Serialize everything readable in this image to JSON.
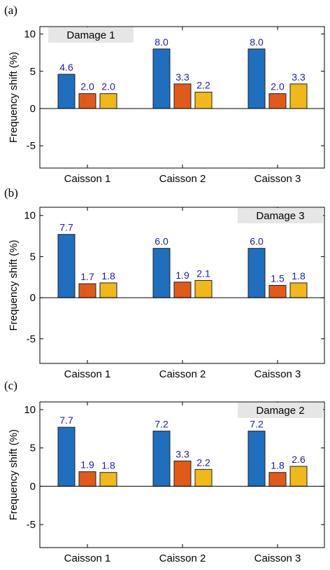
{
  "colors": {
    "series": [
      "#1f6fbe",
      "#e05a1b",
      "#f0b81d"
    ],
    "label_text": "#1a1ab0",
    "legend_bg": "#e6e6e6"
  },
  "chart_data": [
    {
      "type": "bar",
      "panel_label": "(a)",
      "title_box": "Damage 1",
      "title_box_position": "top-left",
      "ylabel": "Frequency shift (%)",
      "ylim": [
        -8,
        11
      ],
      "yticks": [
        10,
        5,
        0,
        -5
      ],
      "categories": [
        "Caisson 1",
        "Caisson 2",
        "Caisson 3"
      ],
      "series": [
        {
          "values": [
            4.6,
            8.0,
            8.0
          ],
          "labels": [
            "4.6",
            "8.0",
            "8.0"
          ]
        },
        {
          "values": [
            2.0,
            3.3,
            2.0
          ],
          "labels": [
            "2.0",
            "3.3",
            "2.0"
          ]
        },
        {
          "values": [
            2.0,
            2.2,
            3.3
          ],
          "labels": [
            "2.0",
            "2.2",
            "3.3"
          ]
        }
      ]
    },
    {
      "type": "bar",
      "panel_label": "(b)",
      "title_box": "Damage 3",
      "title_box_position": "top-right",
      "ylabel": "Frequency shift (%)",
      "ylim": [
        -8,
        11
      ],
      "yticks": [
        10,
        5,
        0,
        -5
      ],
      "categories": [
        "Caisson 1",
        "Caisson 2",
        "Caisson 3"
      ],
      "series": [
        {
          "values": [
            7.7,
            6.0,
            6.0
          ],
          "labels": [
            "7.7",
            "6.0",
            "6.0"
          ]
        },
        {
          "values": [
            1.7,
            1.9,
            1.5
          ],
          "labels": [
            "1.7",
            "1.9",
            "1.5"
          ]
        },
        {
          "values": [
            1.8,
            2.1,
            1.8
          ],
          "labels": [
            "1.8",
            "2.1",
            "1.8"
          ]
        }
      ]
    },
    {
      "type": "bar",
      "panel_label": "(c)",
      "title_box": "Damage 2",
      "title_box_position": "top-right",
      "ylabel": "Frequency shift (%)",
      "ylim": [
        -8,
        11
      ],
      "yticks": [
        10,
        5,
        0,
        -5
      ],
      "categories": [
        "Caisson 1",
        "Caisson 2",
        "Caisson 3"
      ],
      "series": [
        {
          "values": [
            7.7,
            7.2,
            7.2
          ],
          "labels": [
            "7.7",
            "7.2",
            "7.2"
          ]
        },
        {
          "values": [
            1.9,
            3.3,
            1.8
          ],
          "labels": [
            "1.9",
            "3.3",
            "1.8"
          ]
        },
        {
          "values": [
            1.8,
            2.2,
            2.6
          ],
          "labels": [
            "1.8",
            "2.2",
            "2.6"
          ]
        }
      ]
    }
  ]
}
